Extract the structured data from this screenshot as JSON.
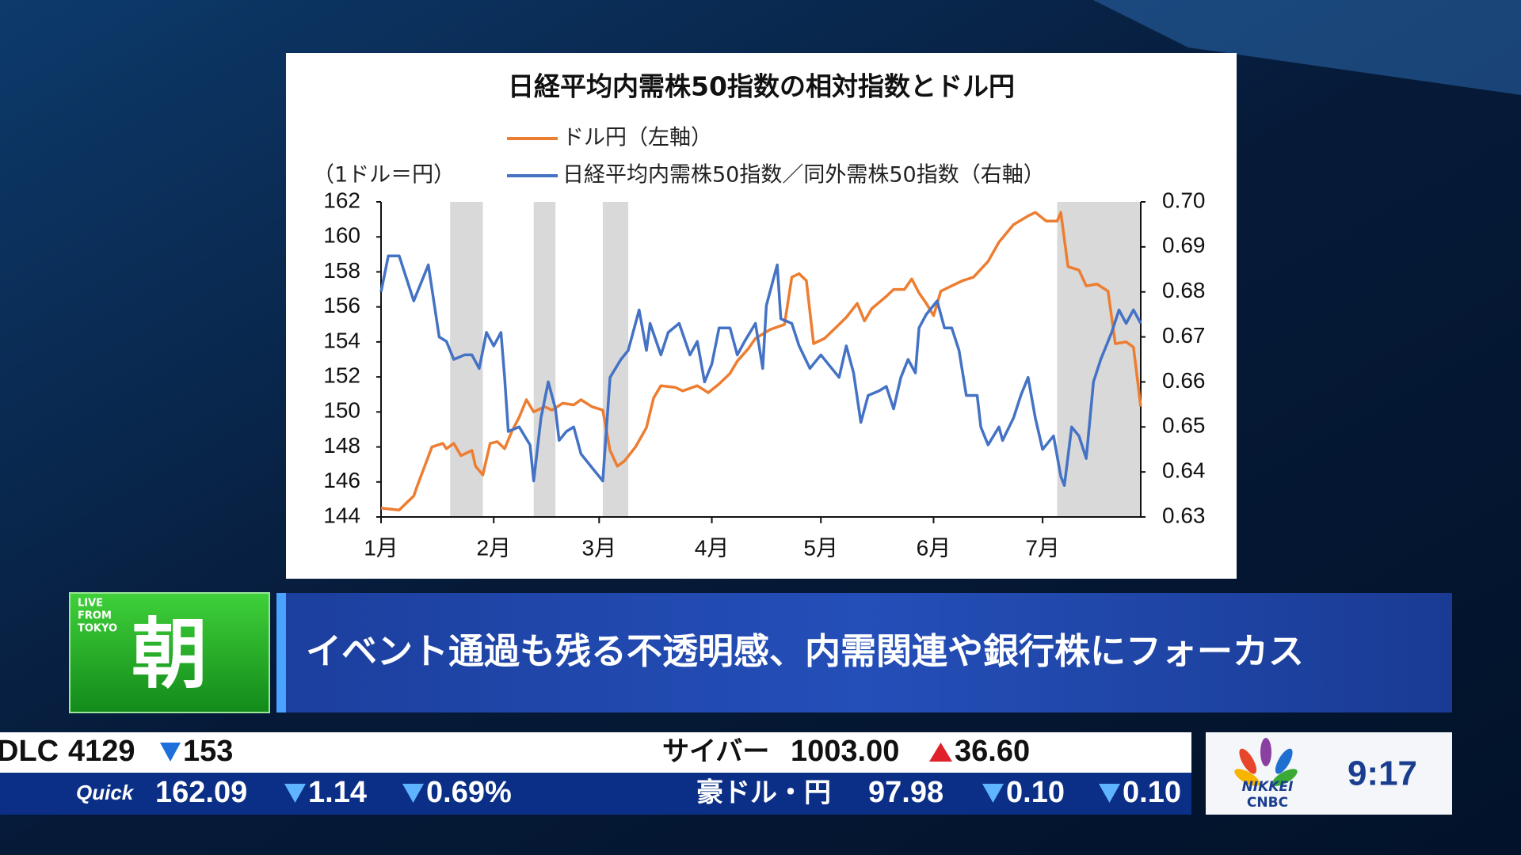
{
  "chart_data": {
    "type": "line",
    "title": "日経平均内需株50指数の相対指数とドル円",
    "y_label": "（1ドル＝円）",
    "xlim": [
      0,
      209
    ],
    "xticks": [
      {
        "value": 0,
        "label": "1月"
      },
      {
        "value": 31,
        "label": "2月"
      },
      {
        "value": 60,
        "label": "3月"
      },
      {
        "value": 91,
        "label": "4月"
      },
      {
        "value": 121,
        "label": "5月"
      },
      {
        "value": 152,
        "label": "6月"
      },
      {
        "value": 182,
        "label": "7月"
      }
    ],
    "ylim": [
      144,
      162
    ],
    "yticks": [
      144,
      146,
      148,
      150,
      152,
      154,
      156,
      158,
      160,
      162
    ],
    "y2lim": [
      0.63,
      0.7
    ],
    "y2ticks": [
      0.63,
      0.64,
      0.65,
      0.66,
      0.67,
      0.68,
      0.69,
      {
        "value": 0.7,
        "label": "0.70"
      }
    ],
    "shaded_ranges": [
      [
        19,
        28
      ],
      [
        42,
        48
      ],
      [
        61,
        68
      ],
      [
        186,
        209
      ]
    ],
    "shade_color": "#d9d9d9",
    "series": [
      {
        "name": "ドル円（左軸）",
        "color": "#ed7d31",
        "axis": "y",
        "x": [
          0,
          5,
          7,
          9,
          10,
          12,
          14,
          17,
          18,
          20,
          22,
          25,
          26,
          28,
          30,
          32,
          34,
          36,
          38,
          40,
          42,
          45,
          47,
          50,
          53,
          55,
          58,
          61,
          63,
          65,
          67,
          70,
          73,
          75,
          77,
          81,
          83,
          87,
          90,
          93,
          96,
          98,
          101,
          103,
          107,
          111,
          113,
          115,
          117,
          119,
          122,
          125,
          128,
          131,
          133,
          135,
          139,
          141,
          144,
          146,
          148,
          150,
          152,
          154,
          157,
          160,
          163,
          167,
          170,
          174,
          178,
          180,
          183,
          186,
          187,
          189,
          192,
          194,
          197,
          200,
          202,
          205,
          207,
          209
        ],
        "values": [
          144.5,
          144.4,
          144.8,
          145.2,
          145.8,
          146.9,
          148.0,
          148.2,
          147.9,
          148.2,
          147.5,
          147.8,
          146.9,
          146.4,
          148.2,
          148.3,
          147.9,
          148.9,
          149.7,
          150.7,
          150.0,
          150.3,
          150.1,
          150.5,
          150.4,
          150.7,
          150.3,
          150.1,
          147.8,
          146.9,
          147.2,
          148.0,
          149.1,
          150.8,
          151.5,
          151.4,
          151.2,
          151.5,
          151.1,
          151.6,
          152.2,
          152.9,
          153.6,
          154.2,
          154.7,
          155.0,
          157.7,
          157.9,
          157.5,
          153.9,
          154.2,
          154.8,
          155.4,
          156.2,
          155.2,
          155.9,
          156.6,
          157.0,
          157.0,
          157.6,
          156.8,
          156.2,
          155.5,
          156.9,
          157.2,
          157.5,
          157.7,
          158.6,
          159.7,
          160.7,
          161.2,
          161.4,
          160.9,
          160.9,
          161.4,
          158.3,
          158.1,
          157.2,
          157.3,
          156.9,
          153.9,
          154.0,
          153.7,
          150.3
        ]
      },
      {
        "name": "日経平均内需株50指数／同外需株50指数（右軸）",
        "color": "#4472c4",
        "axis": "y2",
        "x": [
          0,
          2,
          5,
          7,
          9,
          11,
          13,
          16,
          18,
          20,
          23,
          25,
          27,
          29,
          31,
          33,
          34,
          35,
          38,
          41,
          42,
          44,
          46,
          48,
          49,
          51,
          53,
          55,
          58,
          61,
          63,
          66,
          68,
          71,
          73,
          74,
          77,
          79,
          82,
          85,
          87,
          89,
          91,
          93,
          96,
          98,
          100,
          103,
          105,
          106,
          109,
          110,
          113,
          115,
          118,
          121,
          123,
          126,
          128,
          130,
          132,
          134,
          137,
          139,
          141,
          143,
          145,
          147,
          148,
          150,
          153,
          155,
          157,
          159,
          161,
          164,
          165,
          167,
          170,
          171,
          174,
          176,
          178,
          180,
          182,
          185,
          187,
          188,
          190,
          192,
          194,
          196,
          198,
          201,
          203,
          205,
          207,
          209
        ],
        "values": [
          0.68,
          0.688,
          0.688,
          0.683,
          0.678,
          0.682,
          0.686,
          0.67,
          0.669,
          0.665,
          0.666,
          0.666,
          0.663,
          0.671,
          0.668,
          0.671,
          0.661,
          0.649,
          0.65,
          0.646,
          0.638,
          0.652,
          0.66,
          0.654,
          0.647,
          0.649,
          0.65,
          0.644,
          0.641,
          0.638,
          0.661,
          0.665,
          0.667,
          0.676,
          0.667,
          0.673,
          0.666,
          0.671,
          0.673,
          0.666,
          0.669,
          0.66,
          0.664,
          0.672,
          0.672,
          0.666,
          0.669,
          0.673,
          0.663,
          0.677,
          0.686,
          0.674,
          0.673,
          0.668,
          0.663,
          0.666,
          0.664,
          0.661,
          0.668,
          0.662,
          0.651,
          0.657,
          0.658,
          0.659,
          0.654,
          0.661,
          0.665,
          0.662,
          0.672,
          0.675,
          0.678,
          0.672,
          0.672,
          0.667,
          0.657,
          0.657,
          0.65,
          0.646,
          0.65,
          0.647,
          0.652,
          0.657,
          0.661,
          0.652,
          0.645,
          0.648,
          0.639,
          0.637,
          0.65,
          0.648,
          0.643,
          0.66,
          0.665,
          0.671,
          0.676,
          0.673,
          0.676,
          0.673
        ]
      }
    ]
  },
  "program": {
    "live": "LIVE",
    "from": "FROM",
    "tokyo": "TOKYO",
    "show": "朝",
    "headline": "イベント通過も残る不透明感、内需関連や銀行株にフォーカス"
  },
  "ticker": {
    "row1": {
      "name1": "DLC",
      "price1": "4129",
      "change1": "153",
      "name2": "サイバー",
      "price2": "1003.00",
      "change2": "36.60"
    },
    "row2": {
      "source": "Quick",
      "price1": "162.09",
      "change1": "1.14",
      "pct1": "0.69%",
      "name2": "豪ドル・円",
      "price2": "97.98",
      "change2a": "0.10",
      "change2b": "0.10"
    }
  },
  "logo": {
    "line1": "NIKKEI",
    "line2": "CNBC"
  },
  "clock": "9:17"
}
